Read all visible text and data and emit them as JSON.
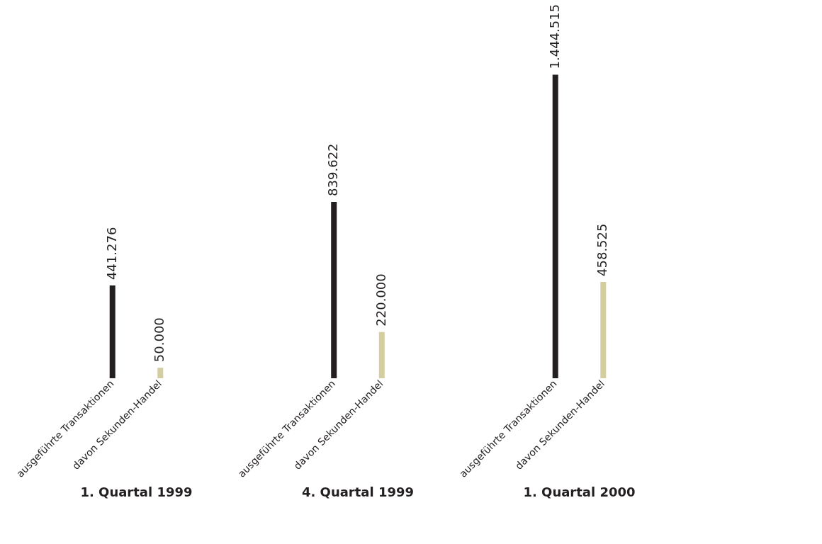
{
  "chart_data": {
    "type": "bar",
    "categories": [
      "1. Quartal 1999",
      "4. Quartal 1999",
      "1. Quartal 2000"
    ],
    "series": [
      {
        "name": "ausgeführte Transaktionen",
        "color": "#231f20",
        "values": [
          441276,
          839622,
          1444515
        ],
        "value_labels": [
          "441.276",
          "839.622",
          "1.444.515"
        ]
      },
      {
        "name": "davon Sekunden-Handel",
        "color": "#d3cda0",
        "values": [
          50000,
          220000,
          458525
        ],
        "value_labels": [
          "50.000",
          "220.000",
          "458.525"
        ]
      }
    ],
    "legend": false,
    "grid": false
  }
}
